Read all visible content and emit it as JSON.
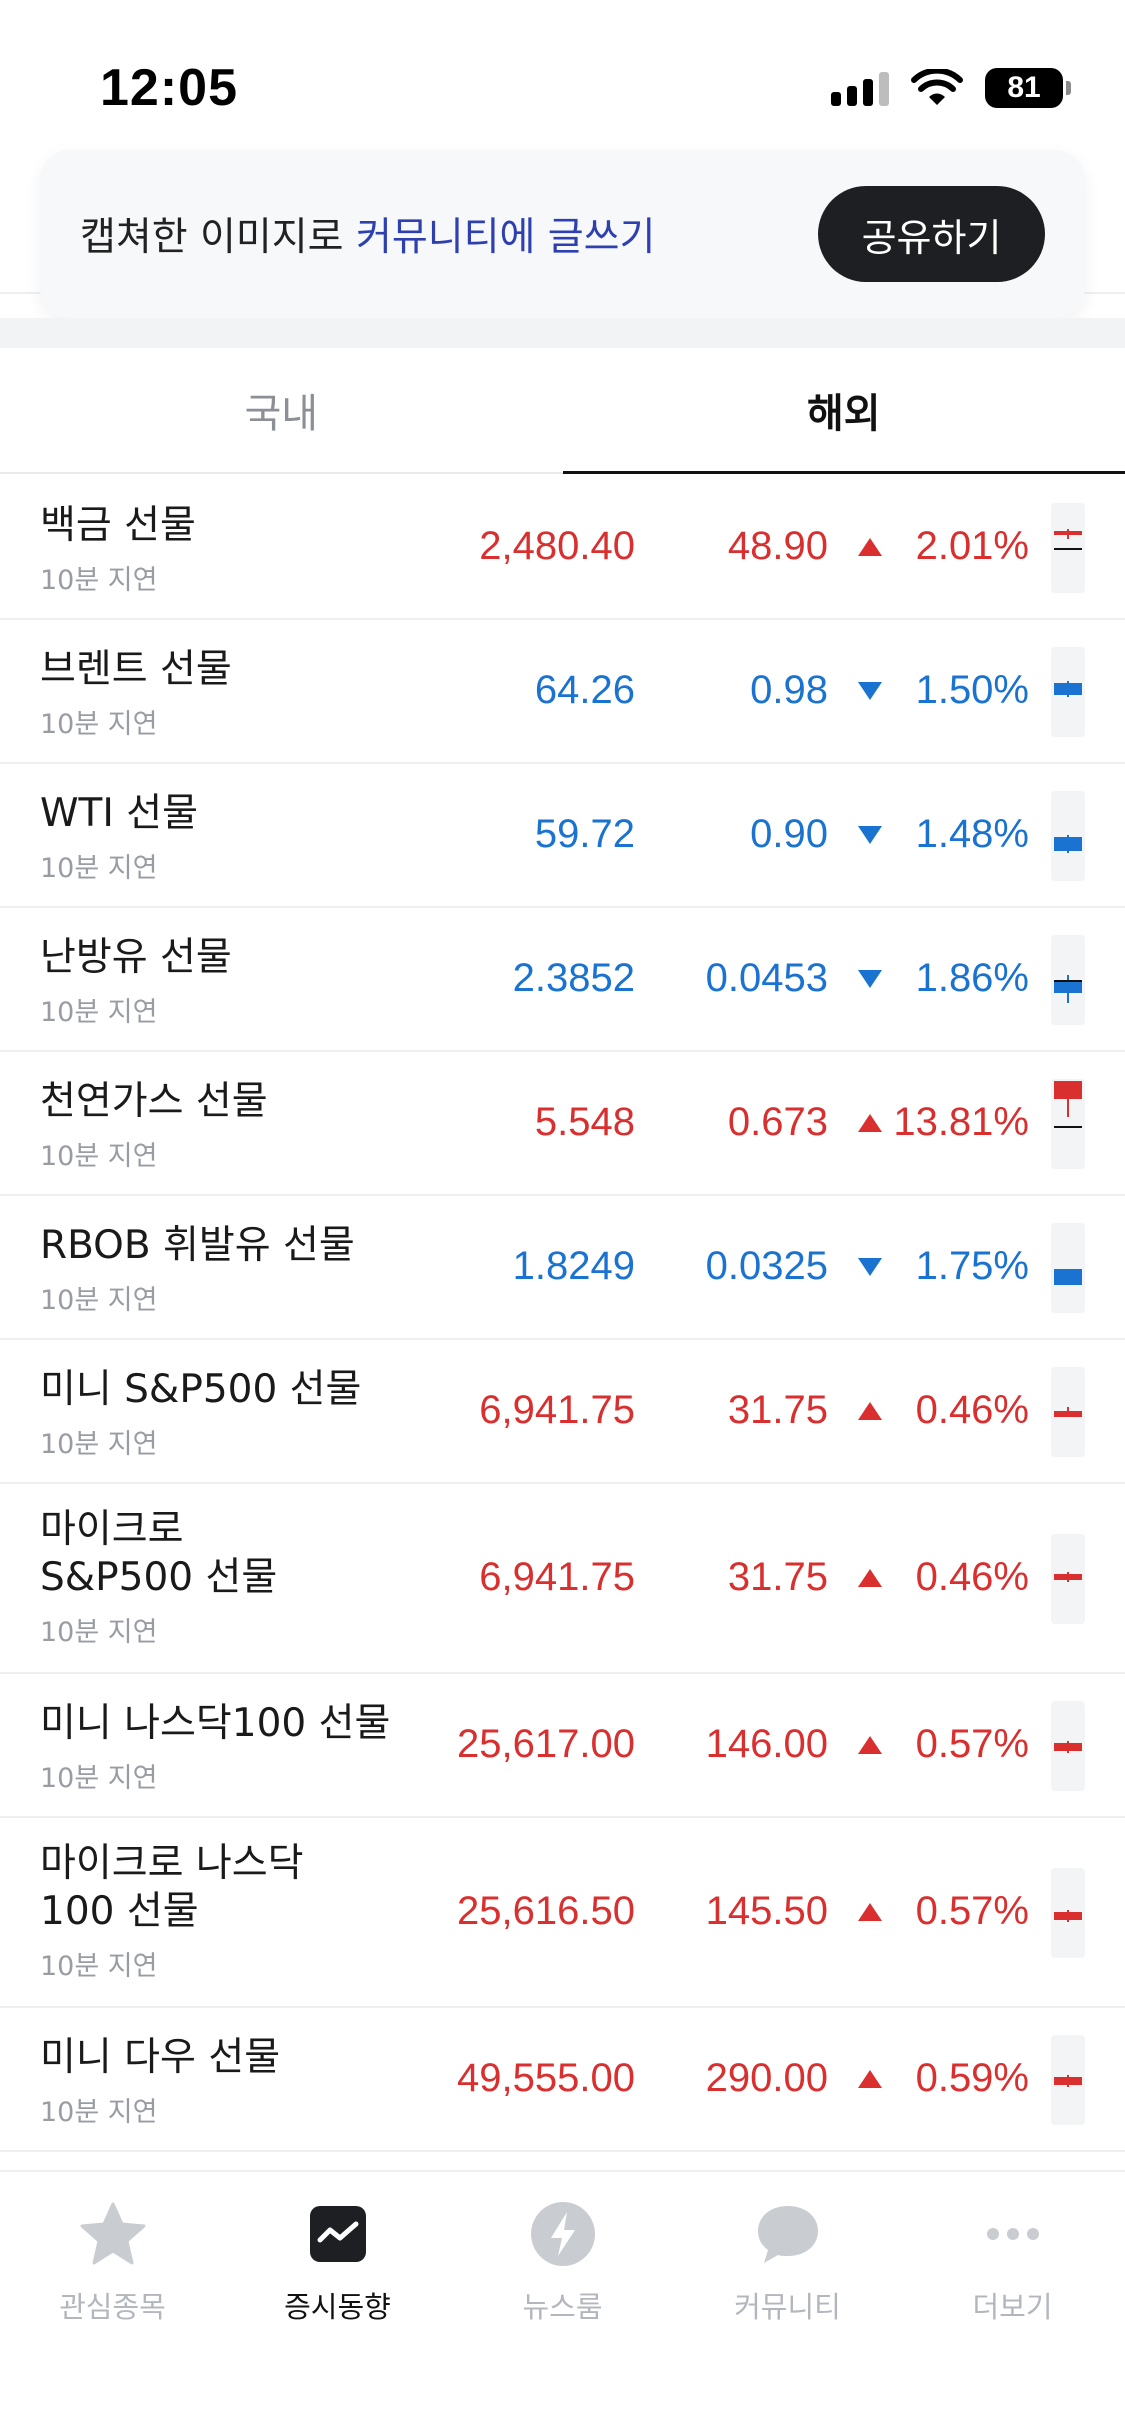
{
  "status": {
    "time": "12:05",
    "battery": "81"
  },
  "banner": {
    "text_prefix": "캡쳐한 이미지로 ",
    "text_link": "커뮤니티에 글쓰기",
    "button": "공유하기"
  },
  "tabs": [
    {
      "label": "국내",
      "active": false
    },
    {
      "label": "해외",
      "active": true
    }
  ],
  "rows": [
    {
      "name1": "백금 선물",
      "name2": "",
      "sub": "10분 지연",
      "price": "2,480.40",
      "change": "48.90",
      "pct": "2.01%",
      "dir": "up"
    },
    {
      "name1": "브렌트 선물",
      "name2": "",
      "sub": "10분 지연",
      "price": "64.26",
      "change": "0.98",
      "pct": "1.50%",
      "dir": "down"
    },
    {
      "name1": "WTI 선물",
      "name2": "",
      "sub": "10분 지연",
      "price": "59.72",
      "change": "0.90",
      "pct": "1.48%",
      "dir": "down"
    },
    {
      "name1": "난방유 선물",
      "name2": "",
      "sub": "10분 지연",
      "price": "2.3852",
      "change": "0.0453",
      "pct": "1.86%",
      "dir": "down"
    },
    {
      "name1": "천연가스 선물",
      "name2": "",
      "sub": "10분 지연",
      "price": "5.548",
      "change": "0.673",
      "pct": "13.81%",
      "dir": "up"
    },
    {
      "name1": "RBOB 휘발유 선물",
      "name2": "",
      "sub": "10분 지연",
      "price": "1.8249",
      "change": "0.0325",
      "pct": "1.75%",
      "dir": "down"
    },
    {
      "name1": "미니 S&P500 선물",
      "name2": "",
      "sub": "10분 지연",
      "price": "6,941.75",
      "change": "31.75",
      "pct": "0.46%",
      "dir": "up"
    },
    {
      "name1": "마이크로",
      "name2": "S&P500 선물",
      "sub": "10분 지연",
      "price": "6,941.75",
      "change": "31.75",
      "pct": "0.46%",
      "dir": "up"
    },
    {
      "name1": "미니 나스닥100 선물",
      "name2": "",
      "sub": "10분 지연",
      "price": "25,617.00",
      "change": "146.00",
      "pct": "0.57%",
      "dir": "up"
    },
    {
      "name1": "마이크로 나스닥",
      "name2": "100 선물",
      "sub": "10분 지연",
      "price": "25,616.50",
      "change": "145.50",
      "pct": "0.57%",
      "dir": "up"
    },
    {
      "name1": "미니 다우 선물",
      "name2": "",
      "sub": "10분 지연",
      "price": "49,555.00",
      "change": "290.00",
      "pct": "0.59%",
      "dir": "up"
    }
  ],
  "nav": [
    {
      "label": "관심종목",
      "icon": "star-icon",
      "active": false
    },
    {
      "label": "증시동향",
      "icon": "market-chart-icon",
      "active": true
    },
    {
      "label": "뉴스룸",
      "icon": "lightning-icon",
      "active": false
    },
    {
      "label": "커뮤니티",
      "icon": "chat-bubble-icon",
      "active": false
    },
    {
      "label": "더보기",
      "icon": "more-dots-icon",
      "active": false
    }
  ],
  "colors": {
    "up": "#d92f2f",
    "down": "#1a73d1",
    "link": "#2e3fb0"
  }
}
